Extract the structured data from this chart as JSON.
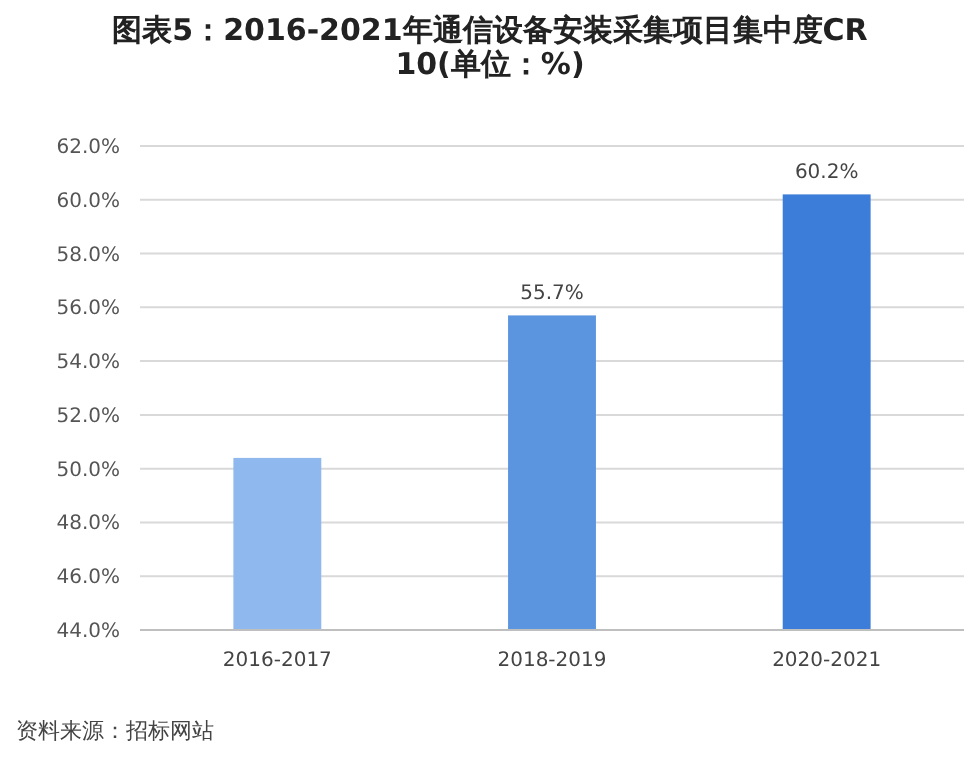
{
  "chart_data": {
    "type": "bar",
    "title": "图表5：2016-2021年通信设备安装采集项目集中度CR10(单位：%)",
    "categories": [
      "2016-2017",
      "2018-2019",
      "2020-2021"
    ],
    "values": [
      50.4,
      55.7,
      60.2
    ],
    "colors": [
      "#8fb8ef",
      "#5b95e0",
      "#3b7dd8"
    ],
    "value_labels": [
      null,
      "55.7%",
      "60.2%"
    ],
    "ylim": [
      44,
      62
    ],
    "yticks": [
      {
        "value": 44,
        "label": "44.0%"
      },
      {
        "value": 46,
        "label": "46.0%"
      },
      {
        "value": 48,
        "label": "48.0%"
      },
      {
        "value": 50,
        "label": "50.0%"
      },
      {
        "value": 52,
        "label": "52.0%"
      },
      {
        "value": 54,
        "label": "54.0%"
      },
      {
        "value": 56,
        "label": "56.0%"
      },
      {
        "value": 58,
        "label": "58.0%"
      },
      {
        "value": 60,
        "label": "60.0%"
      },
      {
        "value": 62,
        "label": "62.0%"
      }
    ],
    "grid": "y",
    "annotations": [
      "资料来源：招标网站"
    ]
  }
}
